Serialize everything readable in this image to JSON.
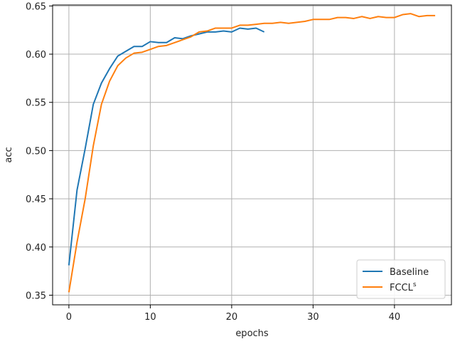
{
  "chart_data": {
    "type": "line",
    "xlabel": "epochs",
    "ylabel": "acc",
    "xlim": [
      -2,
      47
    ],
    "ylim": [
      0.34,
      0.651
    ],
    "xticks": [
      0,
      10,
      20,
      30,
      40
    ],
    "xtick_labels": [
      "0",
      "10",
      "20",
      "30",
      "40"
    ],
    "yticks": [
      0.35,
      0.4,
      0.45,
      0.5,
      0.55,
      0.6,
      0.65
    ],
    "ytick_labels": [
      "0.35",
      "0.40",
      "0.45",
      "0.50",
      "0.55",
      "0.60",
      "0.65"
    ],
    "grid": true,
    "legend_position": "bottom-right",
    "series": [
      {
        "name": "Baseline",
        "color": "#1f77b4",
        "x": [
          0,
          1,
          2,
          3,
          4,
          5,
          6,
          7,
          8,
          9,
          10,
          11,
          12,
          13,
          14,
          15,
          16,
          17,
          18,
          19,
          20,
          21,
          22,
          23,
          24
        ],
        "values": [
          0.381,
          0.459,
          0.502,
          0.548,
          0.57,
          0.585,
          0.598,
          0.603,
          0.608,
          0.608,
          0.613,
          0.612,
          0.612,
          0.617,
          0.616,
          0.619,
          0.621,
          0.623,
          0.623,
          0.624,
          0.623,
          0.627,
          0.626,
          0.627,
          0.623
        ]
      },
      {
        "name": "FCCL",
        "name_sup": "s",
        "color": "#ff7f0e",
        "x": [
          0,
          1,
          2,
          3,
          4,
          5,
          6,
          7,
          8,
          9,
          10,
          11,
          12,
          13,
          14,
          15,
          16,
          17,
          18,
          19,
          20,
          21,
          22,
          23,
          24,
          25,
          26,
          27,
          28,
          29,
          30,
          31,
          32,
          33,
          34,
          35,
          36,
          37,
          38,
          39,
          40,
          41,
          42,
          43,
          44,
          45
        ],
        "values": [
          0.353,
          0.405,
          0.45,
          0.505,
          0.548,
          0.572,
          0.588,
          0.596,
          0.601,
          0.602,
          0.605,
          0.608,
          0.609,
          0.612,
          0.615,
          0.618,
          0.623,
          0.624,
          0.627,
          0.627,
          0.627,
          0.63,
          0.63,
          0.631,
          0.632,
          0.632,
          0.633,
          0.632,
          0.633,
          0.634,
          0.636,
          0.636,
          0.636,
          0.638,
          0.638,
          0.637,
          0.639,
          0.637,
          0.639,
          0.638,
          0.638,
          0.641,
          0.642,
          0.639,
          0.64,
          0.64
        ]
      }
    ]
  }
}
